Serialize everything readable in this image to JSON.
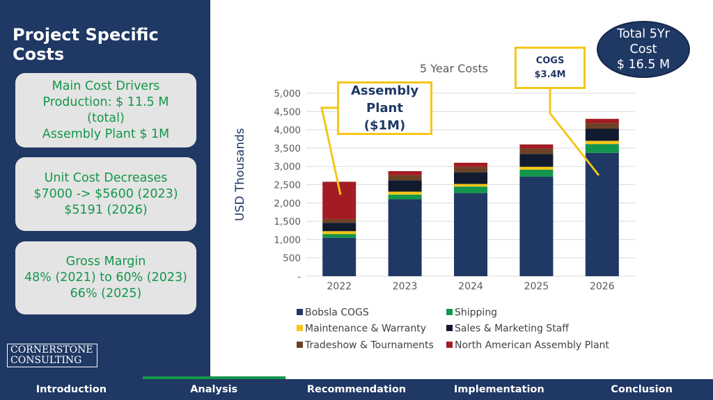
{
  "sidebar": {
    "title": "Project Specific Costs",
    "cards": [
      {
        "lines": [
          "Main Cost Drivers",
          "Production: $ 11.5 M",
          "(total)",
          "Assembly Plant $ 1M"
        ]
      },
      {
        "lines": [
          "Unit Cost Decreases",
          "$7000 -> $5600 (2023)",
          "$5191 (2026)"
        ]
      },
      {
        "lines": [
          "Gross Margin",
          "48% (2021) to 60% (2023)",
          "66% (2025)"
        ]
      }
    ],
    "logo": {
      "line1": "CORNERSTONE",
      "line2": "CONSULTING"
    }
  },
  "nav": {
    "items": [
      "Introduction",
      "Analysis",
      "Recommendation",
      "Implementation",
      "Conclusion"
    ],
    "active_index": 1,
    "accent": "#14964c"
  },
  "total": {
    "line1": "Total 5Yr",
    "line2": "Cost",
    "line3": "$ 16.5 M"
  },
  "callouts": {
    "assembly": {
      "line1": "Assembly",
      "line2": "Plant",
      "line3": "($1M)"
    },
    "cogs": {
      "line1": "COGS",
      "line2": "$3.4M"
    }
  },
  "chart_data": {
    "type": "bar",
    "stacked": true,
    "title": "5 Year Costs",
    "ylabel": "USD Thousands",
    "xlabel": "",
    "ylim": [
      0,
      5000
    ],
    "yticks": [
      0,
      500,
      1000,
      1500,
      2000,
      2500,
      3000,
      3500,
      4000,
      4500,
      5000
    ],
    "ytick_labels": [
      "-",
      "500",
      "1,000",
      "1,500",
      "2,000",
      "2,500",
      "3,000",
      "3,500",
      "4,000",
      "4,500",
      "5,000"
    ],
    "grid": true,
    "legend_position": "bottom",
    "categories": [
      "2022",
      "2023",
      "2024",
      "2025",
      "2026"
    ],
    "series": [
      {
        "name": "Bobsla COGS",
        "color": "#1f3864",
        "values": [
          1050,
          2100,
          2270,
          2720,
          3370
        ]
      },
      {
        "name": "Shipping",
        "color": "#14964c",
        "values": [
          100,
          130,
          180,
          190,
          240
        ]
      },
      {
        "name": "Maintenance & Warranty",
        "color": "#f5c518",
        "values": [
          80,
          80,
          70,
          80,
          90
        ]
      },
      {
        "name": "Sales & Marketing Staff",
        "color": "#111a2e",
        "values": [
          230,
          310,
          320,
          350,
          330
        ]
      },
      {
        "name": "Tradeshow & Tournaments",
        "color": "#6b4226",
        "values": [
          100,
          140,
          150,
          150,
          150
        ]
      },
      {
        "name": "North American Assembly Plant",
        "color": "#a31c24",
        "values": [
          1020,
          110,
          110,
          110,
          120
        ]
      }
    ]
  }
}
